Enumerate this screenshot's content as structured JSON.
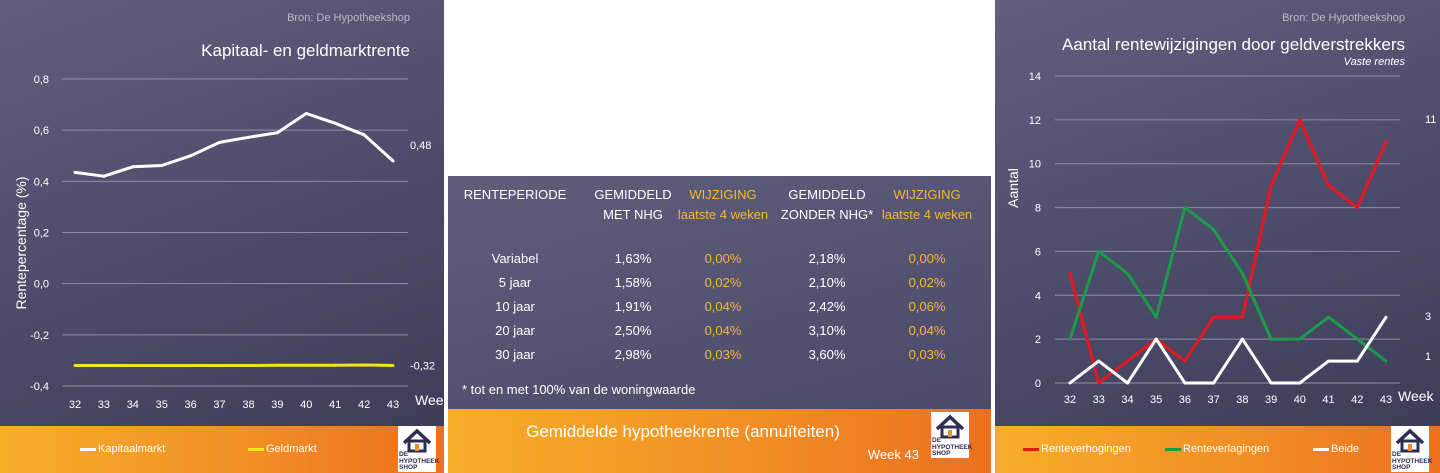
{
  "left_panel": {
    "source": "Bron: De Hypotheekshop",
    "legend": [
      {
        "label": "Kapitaalmarkt",
        "color": "#ffffff"
      },
      {
        "label": "Geldmarkt",
        "color": "#f2e51c"
      }
    ],
    "end_labels": [
      "0,48",
      "-0,32"
    ]
  },
  "right_panel": {
    "source": "Bron: De Hypotheekshop",
    "subtitle": "Vaste rentes",
    "legend": [
      {
        "label": "Renteverhogingen",
        "color": "#e8161e"
      },
      {
        "label": "Renteverlagingen",
        "color": "#1a9b4a"
      },
      {
        "label": "Beide",
        "color": "#ffffff"
      }
    ],
    "end_labels": [
      "11",
      "3",
      "1"
    ]
  },
  "table": {
    "headers": [
      {
        "line1": "RENTEPERIODE",
        "line2": "",
        "highlight": false
      },
      {
        "line1": "GEMIDDELD",
        "line2": "MET NHG",
        "highlight": false
      },
      {
        "line1": "WIJZIGING",
        "line2": "laatste 4 weken",
        "highlight": true
      },
      {
        "line1": "GEMIDDELD",
        "line2": "ZONDER NHG*",
        "highlight": false
      },
      {
        "line1": "WIJZIGING",
        "line2": "laatste 4 weken",
        "highlight": true
      }
    ],
    "rows": [
      [
        "Variabel",
        "1,63%",
        "0,00%",
        "2,18%",
        "0,00%"
      ],
      [
        "5 jaar",
        "1,58%",
        "0,02%",
        "2,10%",
        "0,02%"
      ],
      [
        "10 jaar",
        "1,91%",
        "0,04%",
        "2,42%",
        "0,06%"
      ],
      [
        "20 jaar",
        "2,50%",
        "0,04%",
        "3,10%",
        "0,04%"
      ],
      [
        "30 jaar",
        "2,98%",
        "0,03%",
        "3,60%",
        "0,03%"
      ]
    ],
    "footnote": "* tot en met 100% van de woningwaarde",
    "footer_title": "Gemiddelde hypotheekrente (annuïteiten)",
    "footer_week": "Week 43"
  },
  "logo_text": [
    "DE",
    "HYPOTHEEK",
    "SHOP"
  ],
  "colors": {
    "accent_orange": "#f8b62d",
    "footer_orange": "#f28f25",
    "panel_bg": "#4e4e6c"
  },
  "chart_data": [
    {
      "type": "line",
      "title": "Kapitaal- en geldmarktrente",
      "xlabel": "Week",
      "ylabel": "Rentepercentage (%)",
      "x": [
        32,
        33,
        34,
        35,
        36,
        37,
        38,
        39,
        40,
        41,
        42,
        43
      ],
      "ylim": [
        -0.4,
        0.8
      ],
      "yticks": [
        -0.4,
        -0.2,
        0.0,
        0.2,
        0.4,
        0.6,
        0.8
      ],
      "ytick_labels": [
        "-0,4",
        "-0,2",
        "0,0",
        "0,2",
        "0,4",
        "0,6",
        "0,8"
      ],
      "grid": true,
      "legend": "bottom",
      "series": [
        {
          "name": "Kapitaalmarkt",
          "color": "#ffffff",
          "values": [
            0.435,
            0.42,
            0.457,
            0.462,
            0.5,
            0.552,
            0.572,
            0.59,
            0.665,
            0.627,
            0.582,
            0.48
          ]
        },
        {
          "name": "Geldmarkt",
          "color": "#f2e51c",
          "values": [
            -0.32,
            -0.32,
            -0.32,
            -0.32,
            -0.32,
            -0.32,
            -0.32,
            -0.319,
            -0.319,
            -0.319,
            -0.318,
            -0.32
          ]
        }
      ]
    },
    {
      "type": "line",
      "title": "Aantal rentewijzigingen door geldverstrekkers",
      "subtitle": "Vaste rentes",
      "xlabel": "Week",
      "ylabel": "Aantal",
      "x": [
        32,
        33,
        34,
        35,
        36,
        37,
        38,
        39,
        40,
        41,
        42,
        43
      ],
      "ylim": [
        0,
        14
      ],
      "yticks": [
        0,
        2,
        4,
        6,
        8,
        10,
        12,
        14
      ],
      "grid": true,
      "legend": "bottom",
      "series": [
        {
          "name": "Renteverhogingen",
          "color": "#e8161e",
          "values": [
            5,
            0,
            1,
            2,
            1,
            3,
            3,
            9,
            12,
            9,
            8,
            11
          ]
        },
        {
          "name": "Renteverlagingen",
          "color": "#1a9b4a",
          "values": [
            2,
            6,
            5,
            3,
            8,
            7,
            5,
            2,
            2,
            3,
            2,
            1
          ]
        },
        {
          "name": "Beide",
          "color": "#ffffff",
          "values": [
            0,
            1,
            0,
            2,
            0,
            0,
            2,
            0,
            0,
            1,
            1,
            3
          ]
        }
      ]
    }
  ]
}
